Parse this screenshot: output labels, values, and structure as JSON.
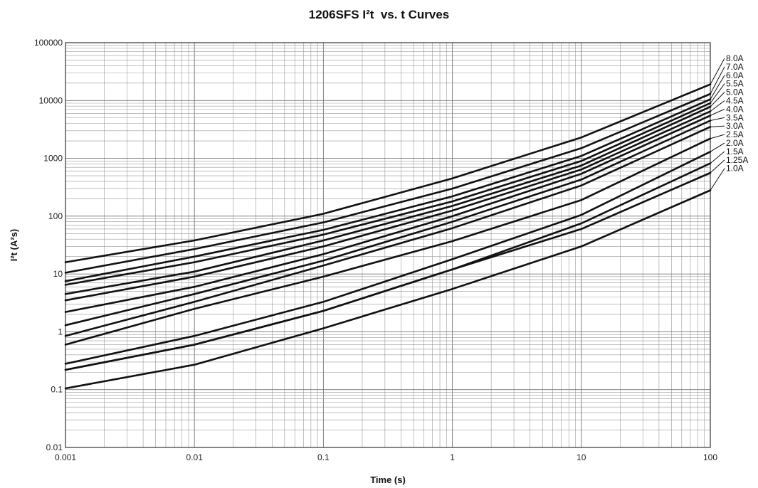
{
  "chart_data": {
    "type": "line",
    "title": "1206SFS I²t  vs. t Curves",
    "xlabel": "Time (s)",
    "ylabel": "I²t (A²s)",
    "x_scale": "log",
    "y_scale": "log",
    "xlim": [
      0.001,
      100
    ],
    "ylim": [
      0.01,
      100000
    ],
    "grid": true,
    "x_ticks": [
      {
        "value": 0.001,
        "label": "0.001"
      },
      {
        "value": 0.01,
        "label": "0.01"
      },
      {
        "value": 0.1,
        "label": "0.1"
      },
      {
        "value": 1,
        "label": "1"
      },
      {
        "value": 10,
        "label": "10"
      },
      {
        "value": 100,
        "label": "100"
      }
    ],
    "y_ticks": [
      {
        "value": 0.01,
        "label": "0.01"
      },
      {
        "value": 0.1,
        "label": "0.1"
      },
      {
        "value": 1,
        "label": "1"
      },
      {
        "value": 10,
        "label": "10"
      },
      {
        "value": 100,
        "label": "100"
      },
      {
        "value": 1000,
        "label": "1000"
      },
      {
        "value": 10000,
        "label": "10000"
      },
      {
        "value": 100000,
        "label": "100000"
      }
    ],
    "x": [
      0.001,
      0.01,
      0.1,
      1,
      10,
      100
    ],
    "series": [
      {
        "name": "8.0A",
        "values": [
          16,
          38,
          110,
          450,
          2300,
          19000
        ]
      },
      {
        "name": "7.0A",
        "values": [
          10.5,
          27,
          78,
          300,
          1500,
          13000
        ]
      },
      {
        "name": "6.0A",
        "values": [
          7.5,
          20,
          58,
          220,
          1100,
          10500
        ]
      },
      {
        "name": "5.5A",
        "values": [
          6.5,
          16,
          48,
          180,
          900,
          9000
        ]
      },
      {
        "name": "5.0A",
        "values": [
          4.5,
          11,
          38,
          150,
          750,
          7800
        ]
      },
      {
        "name": "4.5A",
        "values": [
          3.5,
          9,
          30,
          125,
          640,
          6500
        ]
      },
      {
        "name": "4.0A",
        "values": [
          2.2,
          6,
          22,
          100,
          540,
          5500
        ]
      },
      {
        "name": "3.5A",
        "values": [
          1.3,
          4.5,
          17,
          80,
          430,
          4500
        ]
      },
      {
        "name": "3.0A",
        "values": [
          0.85,
          3.3,
          14,
          62,
          340,
          3500
        ]
      },
      {
        "name": "2.5A",
        "values": [
          0.6,
          2.5,
          9,
          37,
          190,
          2200
        ]
      },
      {
        "name": "2.0A",
        "values": [
          0.28,
          0.85,
          3.3,
          18,
          105,
          1300
        ]
      },
      {
        "name": "1.5A",
        "values": [
          0.22,
          0.6,
          2.3,
          12,
          75,
          820
        ]
      },
      {
        "name": "1.25A",
        "values": [
          0.22,
          0.6,
          2.3,
          12,
          60,
          560
        ]
      },
      {
        "name": "1.0A",
        "values": [
          0.105,
          0.27,
          1.15,
          5.5,
          30,
          280
        ]
      }
    ]
  }
}
